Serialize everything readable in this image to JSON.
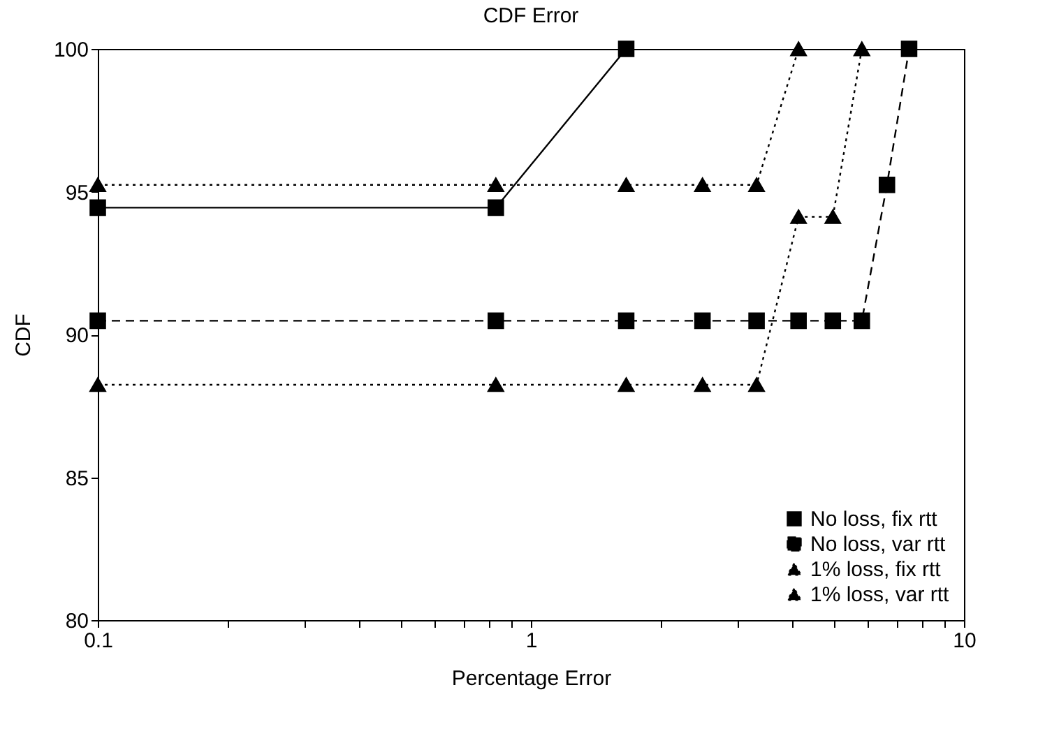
{
  "chart_data": {
    "type": "line",
    "title": "CDF Error",
    "xlabel": "Percentage Error",
    "ylabel": "CDF",
    "log": "x",
    "xlim": [
      0.1,
      10
    ],
    "ylim": [
      80,
      100
    ],
    "xticks": [
      0.1,
      {
        "value": 0.2,
        "label": null
      },
      {
        "value": 0.3,
        "label": null
      },
      {
        "value": 0.4,
        "label": null
      },
      {
        "value": 0.5,
        "label": null
      },
      {
        "value": 0.6,
        "label": null
      },
      {
        "value": 0.7,
        "label": null
      },
      {
        "value": 0.8,
        "label": null
      },
      {
        "value": 0.9,
        "label": null
      },
      1,
      {
        "value": 2,
        "label": null
      },
      {
        "value": 3,
        "label": null
      },
      {
        "value": 4,
        "label": null
      },
      {
        "value": 5,
        "label": null
      },
      {
        "value": 6,
        "label": null
      },
      {
        "value": 7,
        "label": null
      },
      {
        "value": 8,
        "label": null
      },
      {
        "value": 9,
        "label": null
      },
      10
    ],
    "yticks": [
      80,
      85,
      90,
      95,
      100
    ],
    "grid": false,
    "legend": "bottom right",
    "series": [
      {
        "name": "No loss, fix rtt",
        "color": "#000000",
        "marker": "square",
        "line_style": "solid",
        "x": [
          0.1,
          0.83,
          1.66
        ],
        "values": [
          94.44,
          94.44,
          100
        ]
      },
      {
        "name": "No loss, var rtt",
        "color": "#000000",
        "marker": "square",
        "line_style": "dashed",
        "x": [
          0.1,
          0.83,
          1.66,
          2.49,
          3.32,
          4.15,
          4.98,
          5.81,
          6.64,
          7.47
        ],
        "values": [
          90.48,
          90.48,
          90.48,
          90.48,
          90.48,
          90.48,
          90.48,
          90.48,
          95.24,
          100
        ]
      },
      {
        "name": "1% loss, fix rtt",
        "color": "#000000",
        "marker": "triangle",
        "line_style": "dotted",
        "x": [
          0.1,
          0.83,
          1.66,
          2.49,
          3.32,
          4.15,
          4.98,
          5.81
        ],
        "values": [
          88.24,
          88.24,
          88.24,
          88.24,
          88.24,
          94.12,
          94.12,
          100
        ]
      },
      {
        "name": "1% loss, var rtt",
        "color": "#000000",
        "marker": "triangle",
        "line_style": "dotted",
        "x": [
          0.1,
          0.83,
          1.66,
          2.49,
          3.32,
          4.15
        ],
        "values": [
          95.24,
          95.24,
          95.24,
          95.24,
          95.24,
          100
        ]
      }
    ]
  }
}
